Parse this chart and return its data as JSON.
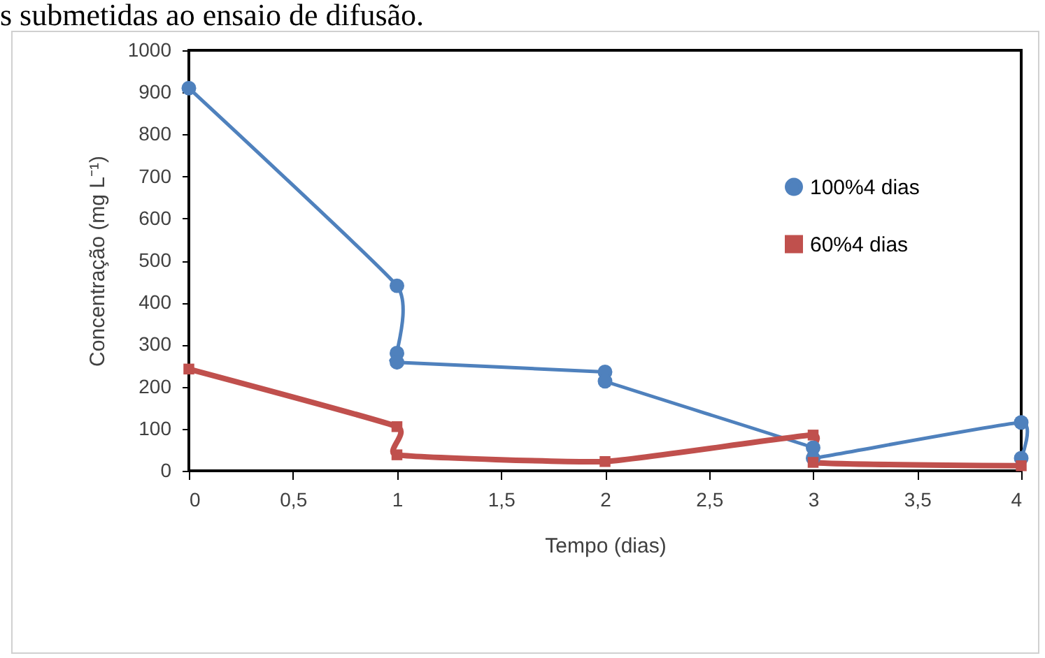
{
  "chart_data": {
    "type": "line",
    "xlabel": "Tempo (dias)",
    "ylabel": "Concentração (mg L⁻¹)",
    "annotations": [
      "s submetidas ao ensaio de difusão."
    ],
    "xlim": [
      0,
      4
    ],
    "xticks": [
      0,
      {
        "value": 0.5,
        "label": "0,5"
      },
      1,
      {
        "value": 1.5,
        "label": "1,5"
      },
      2,
      {
        "value": 2.5,
        "label": "2,5"
      },
      3,
      {
        "value": 3.5,
        "label": "3,5"
      },
      4
    ],
    "ylim": [
      0,
      1000
    ],
    "yticks": [
      0,
      100,
      200,
      300,
      400,
      500,
      600,
      700,
      800,
      900,
      1000
    ],
    "grid": false,
    "legend": "right",
    "series": [
      {
        "name": "100%4 dias",
        "color": "#4f81bd",
        "marker": "circle",
        "x": [
          0,
          1,
          1,
          1,
          2,
          2,
          3,
          3,
          4,
          4
        ],
        "values": [
          910,
          440,
          280,
          258,
          235,
          213,
          55,
          30,
          115,
          30
        ]
      },
      {
        "name": "60%4 dias",
        "color": "#c0504d",
        "marker": "square",
        "x": [
          0,
          1,
          1,
          2,
          3,
          3,
          4
        ],
        "values": [
          242,
          105,
          38,
          22,
          85,
          20,
          12
        ]
      }
    ]
  }
}
